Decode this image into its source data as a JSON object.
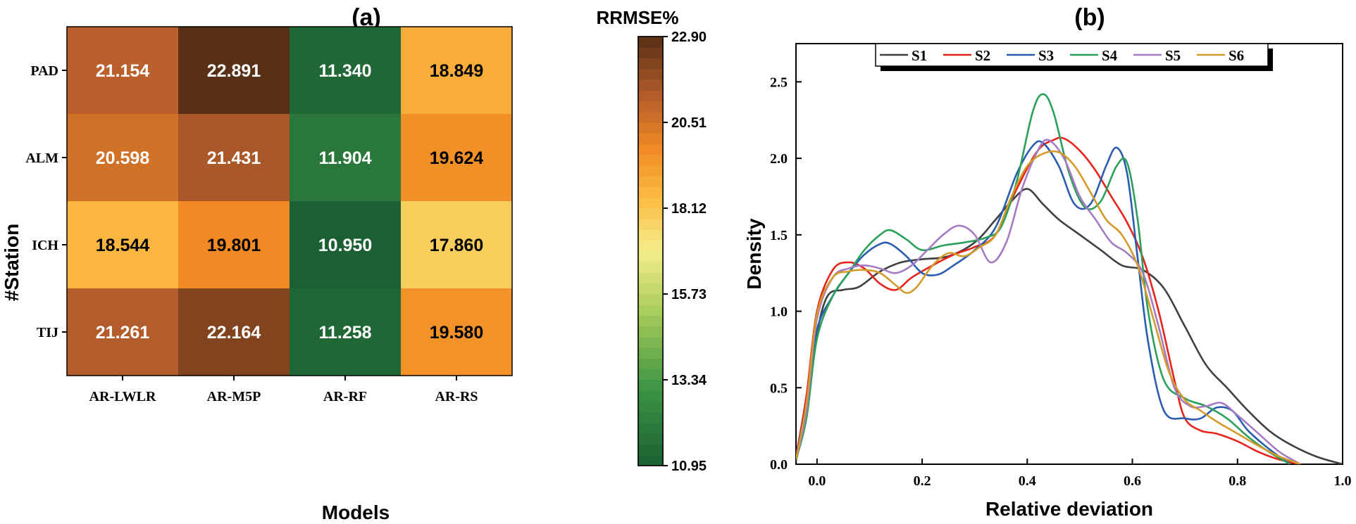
{
  "chart_data": [
    {
      "type": "heatmap",
      "panel_label": "(a)",
      "colorbar_title": "RRMSE%",
      "xlabel": "Models",
      "ylabel": "#Station",
      "columns": [
        "AR-LWLR",
        "AR-M5P",
        "AR-RF",
        "AR-RS"
      ],
      "rows": [
        "PAD",
        "ALM",
        "ICH",
        "TIJ"
      ],
      "values": [
        [
          21.154,
          22.891,
          11.34,
          18.849
        ],
        [
          20.598,
          21.431,
          11.904,
          19.624
        ],
        [
          18.544,
          19.801,
          10.95,
          17.86
        ],
        [
          21.261,
          22.164,
          11.258,
          19.58
        ]
      ],
      "value_labels": [
        [
          "21.154",
          "22.891",
          "11.340",
          "18.849"
        ],
        [
          "20.598",
          "21.431",
          "11.904",
          "19.624"
        ],
        [
          "18.544",
          "19.801",
          "10.950",
          "17.860"
        ],
        [
          "21.261",
          "22.164",
          "11.258",
          "19.580"
        ]
      ],
      "color_range": [
        10.95,
        22.9
      ],
      "colorbar_ticks": [
        "22.90",
        "20.51",
        "18.12",
        "15.73",
        "13.34",
        "10.95"
      ]
    },
    {
      "type": "line",
      "panel_label": "(b)",
      "xlabel": "Relative deviation",
      "ylabel": "Density",
      "xlim": [
        -0.04,
        1.0
      ],
      "ylim": [
        0,
        2.75
      ],
      "xticks": [
        "0.0",
        "0.2",
        "0.4",
        "0.6",
        "0.8",
        "1.0"
      ],
      "yticks": [
        "0.0",
        "0.5",
        "1.0",
        "1.5",
        "2.0",
        "2.5"
      ],
      "legend_position": "top-center",
      "series": [
        {
          "name": "S1",
          "color": "#404040",
          "x": [
            -0.04,
            -0.02,
            0.0,
            0.02,
            0.05,
            0.08,
            0.12,
            0.16,
            0.2,
            0.25,
            0.3,
            0.34,
            0.37,
            0.4,
            0.43,
            0.46,
            0.5,
            0.54,
            0.58,
            0.62,
            0.66,
            0.7,
            0.74,
            0.78,
            0.82,
            0.86,
            0.9,
            0.95,
            1.0
          ],
          "y": [
            0.02,
            0.35,
            0.85,
            1.1,
            1.14,
            1.16,
            1.26,
            1.32,
            1.34,
            1.36,
            1.45,
            1.6,
            1.72,
            1.8,
            1.7,
            1.6,
            1.5,
            1.4,
            1.3,
            1.27,
            1.15,
            0.9,
            0.65,
            0.5,
            0.35,
            0.22,
            0.13,
            0.05,
            0.0
          ]
        },
        {
          "name": "S2",
          "color": "#e8231c",
          "x": [
            -0.04,
            -0.02,
            0.0,
            0.03,
            0.06,
            0.09,
            0.12,
            0.15,
            0.18,
            0.22,
            0.26,
            0.3,
            0.34,
            0.38,
            0.42,
            0.45,
            0.47,
            0.5,
            0.53,
            0.56,
            0.59,
            0.62,
            0.65,
            0.68,
            0.7,
            0.73,
            0.76,
            0.8,
            0.84,
            0.88,
            0.92
          ],
          "y": [
            0.05,
            0.45,
            1.0,
            1.27,
            1.32,
            1.28,
            1.18,
            1.14,
            1.22,
            1.3,
            1.37,
            1.42,
            1.5,
            1.8,
            2.05,
            2.12,
            2.13,
            2.05,
            1.92,
            1.75,
            1.58,
            1.35,
            1.0,
            0.55,
            0.3,
            0.22,
            0.2,
            0.15,
            0.08,
            0.03,
            0.0
          ]
        },
        {
          "name": "S3",
          "color": "#2a5db0",
          "x": [
            -0.04,
            -0.02,
            0.0,
            0.03,
            0.06,
            0.09,
            0.12,
            0.14,
            0.17,
            0.2,
            0.23,
            0.26,
            0.3,
            0.34,
            0.38,
            0.41,
            0.43,
            0.46,
            0.49,
            0.52,
            0.55,
            0.57,
            0.59,
            0.61,
            0.63,
            0.66,
            0.7,
            0.73,
            0.76,
            0.79,
            0.82,
            0.86,
            0.9
          ],
          "y": [
            0.04,
            0.4,
            0.88,
            1.1,
            1.25,
            1.37,
            1.44,
            1.44,
            1.36,
            1.25,
            1.24,
            1.3,
            1.4,
            1.55,
            1.9,
            2.08,
            2.1,
            1.95,
            1.7,
            1.7,
            1.95,
            2.07,
            1.9,
            1.35,
            0.8,
            0.35,
            0.3,
            0.3,
            0.37,
            0.35,
            0.22,
            0.1,
            0.0
          ]
        },
        {
          "name": "S4",
          "color": "#2aa05a",
          "x": [
            -0.04,
            -0.02,
            0.0,
            0.03,
            0.06,
            0.09,
            0.12,
            0.14,
            0.17,
            0.2,
            0.24,
            0.28,
            0.32,
            0.35,
            0.38,
            0.41,
            0.43,
            0.45,
            0.48,
            0.51,
            0.54,
            0.57,
            0.59,
            0.61,
            0.63,
            0.66,
            0.7,
            0.74,
            0.78,
            0.82,
            0.86,
            0.9
          ],
          "y": [
            0.03,
            0.3,
            0.82,
            1.1,
            1.25,
            1.4,
            1.5,
            1.53,
            1.47,
            1.4,
            1.43,
            1.45,
            1.48,
            1.55,
            1.85,
            2.3,
            2.42,
            2.3,
            1.9,
            1.68,
            1.72,
            1.95,
            1.97,
            1.6,
            1.0,
            0.55,
            0.43,
            0.38,
            0.3,
            0.18,
            0.08,
            0.0
          ]
        },
        {
          "name": "S5",
          "color": "#a57bc4",
          "x": [
            -0.04,
            -0.02,
            0.0,
            0.03,
            0.06,
            0.09,
            0.12,
            0.15,
            0.18,
            0.21,
            0.24,
            0.27,
            0.3,
            0.33,
            0.36,
            0.39,
            0.42,
            0.44,
            0.47,
            0.5,
            0.53,
            0.56,
            0.59,
            0.62,
            0.65,
            0.68,
            0.71,
            0.74,
            0.77,
            0.8,
            0.84,
            0.88,
            0.92
          ],
          "y": [
            0.03,
            0.35,
            0.95,
            1.22,
            1.28,
            1.3,
            1.28,
            1.25,
            1.3,
            1.4,
            1.5,
            1.56,
            1.5,
            1.32,
            1.45,
            1.8,
            2.05,
            2.12,
            2.0,
            1.75,
            1.6,
            1.45,
            1.38,
            1.25,
            0.9,
            0.5,
            0.38,
            0.38,
            0.4,
            0.32,
            0.2,
            0.08,
            0.0
          ]
        },
        {
          "name": "S6",
          "color": "#d49a2a",
          "x": [
            -0.04,
            -0.02,
            0.0,
            0.03,
            0.06,
            0.09,
            0.12,
            0.15,
            0.17,
            0.19,
            0.22,
            0.25,
            0.28,
            0.31,
            0.34,
            0.37,
            0.4,
            0.43,
            0.46,
            0.49,
            0.52,
            0.55,
            0.58,
            0.61,
            0.64,
            0.67,
            0.7,
            0.73,
            0.76,
            0.8,
            0.84,
            0.88,
            0.92
          ],
          "y": [
            0.03,
            0.4,
            0.98,
            1.22,
            1.26,
            1.27,
            1.25,
            1.17,
            1.12,
            1.16,
            1.3,
            1.38,
            1.36,
            1.42,
            1.5,
            1.75,
            1.95,
            2.03,
            2.04,
            1.95,
            1.78,
            1.6,
            1.5,
            1.3,
            0.95,
            0.6,
            0.42,
            0.35,
            0.28,
            0.2,
            0.12,
            0.05,
            0.0
          ]
        }
      ]
    }
  ]
}
